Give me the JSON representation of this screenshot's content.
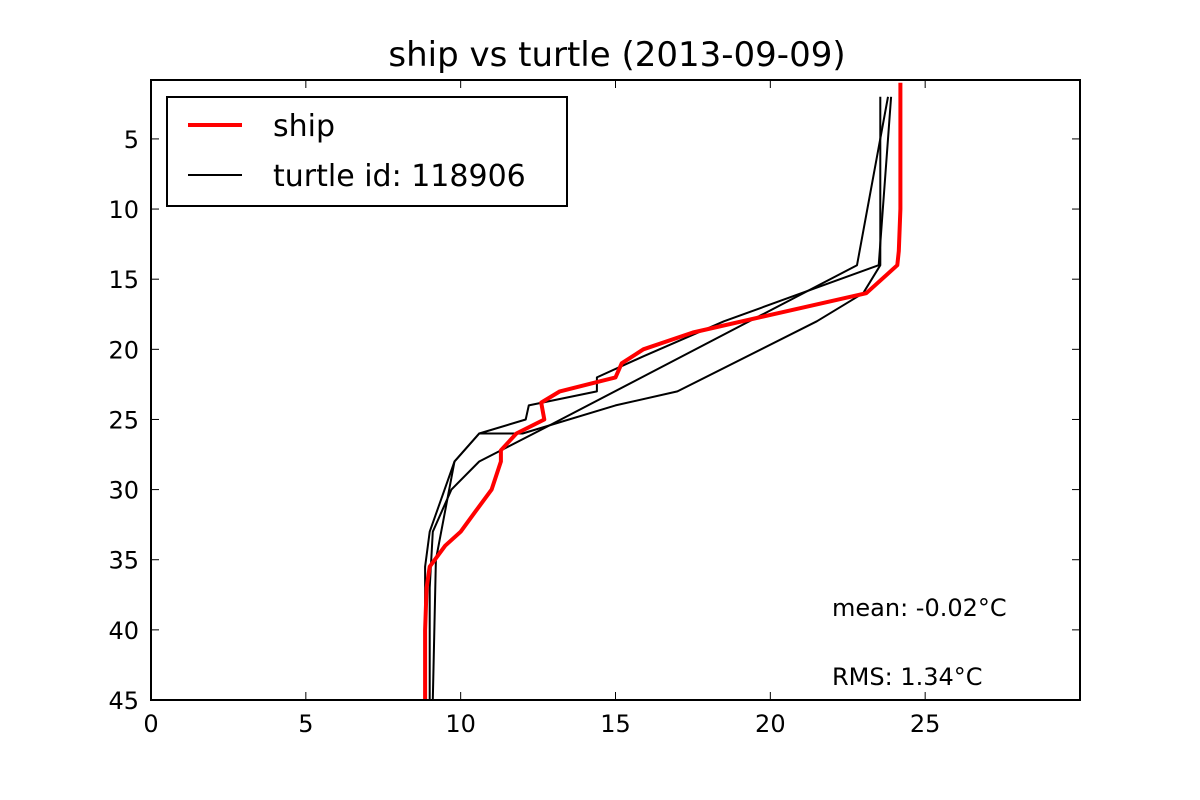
{
  "chart_data": {
    "type": "line",
    "title": "ship vs turtle (2013-09-09)",
    "xlabel": "",
    "ylabel": "",
    "xlim": [
      0,
      30
    ],
    "ylim": [
      45,
      0.8
    ],
    "y_inverted": true,
    "grid": false,
    "legend": "top-left",
    "xticks": [
      0,
      5,
      10,
      15,
      20,
      25
    ],
    "yticks": [
      5,
      10,
      15,
      20,
      25,
      30,
      35,
      40,
      45
    ],
    "series": [
      {
        "name": "ship",
        "color": "#ff0000",
        "points": [
          [
            24.2,
            1
          ],
          [
            24.2,
            10
          ],
          [
            24.15,
            13
          ],
          [
            24.1,
            14
          ],
          [
            23.1,
            16
          ],
          [
            20.5,
            17.3
          ],
          [
            17.5,
            18.8
          ],
          [
            15.9,
            20
          ],
          [
            15.2,
            21
          ],
          [
            15.0,
            22
          ],
          [
            13.2,
            23
          ],
          [
            12.6,
            23.8
          ],
          [
            12.7,
            25
          ],
          [
            11.8,
            26
          ],
          [
            11.3,
            27.2
          ],
          [
            11.3,
            28
          ],
          [
            11.0,
            30
          ],
          [
            10.5,
            31.5
          ],
          [
            10.0,
            33
          ],
          [
            9.5,
            34
          ],
          [
            9.0,
            35.5
          ],
          [
            8.9,
            37
          ],
          [
            8.85,
            40
          ],
          [
            8.85,
            45
          ]
        ]
      },
      {
        "name": "turtle id: 118906",
        "color": "#000000",
        "points": [
          [
            23.8,
            2
          ],
          [
            22.8,
            14
          ],
          [
            12.8,
            25.5
          ],
          [
            10.6,
            28
          ],
          [
            9.7,
            30
          ],
          [
            9.1,
            33
          ],
          [
            9.0,
            37
          ],
          [
            9.0,
            45
          ]
        ]
      },
      {
        "name": "",
        "color": "#000000",
        "points": [
          [
            23.55,
            2
          ],
          [
            23.55,
            14
          ],
          [
            23.0,
            16
          ],
          [
            21.5,
            18
          ],
          [
            17.0,
            23
          ],
          [
            15.0,
            24
          ],
          [
            12.0,
            26
          ],
          [
            10.6,
            26
          ],
          [
            9.8,
            28
          ],
          [
            9.2,
            35
          ],
          [
            9.1,
            45
          ]
        ]
      },
      {
        "name": "",
        "color": "#000000",
        "points": [
          [
            23.9,
            2
          ],
          [
            23.5,
            14
          ],
          [
            18.5,
            18
          ],
          [
            15.9,
            20.5
          ],
          [
            14.4,
            22
          ],
          [
            14.4,
            23
          ],
          [
            12.2,
            24
          ],
          [
            12.1,
            25
          ],
          [
            10.6,
            26
          ],
          [
            9.8,
            28
          ],
          [
            9.0,
            33
          ],
          [
            8.85,
            35.5
          ],
          [
            8.85,
            45
          ]
        ]
      }
    ],
    "annotations": [
      {
        "text": "mean: -0.02°C"
      },
      {
        "text": "RMS: 1.34°C"
      }
    ]
  }
}
